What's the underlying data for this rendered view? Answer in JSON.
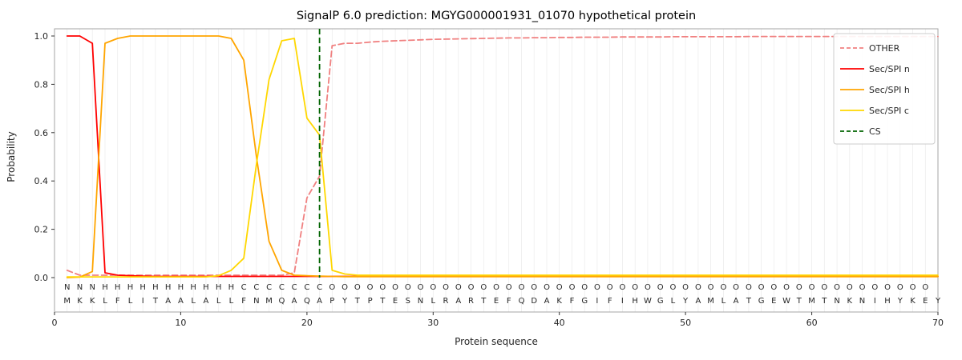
{
  "chart_data": {
    "type": "line",
    "title": "SignalP 6.0 prediction: MGYG000001931_01070 hypothetical protein",
    "xlabel": "Protein sequence",
    "ylabel": "Probability",
    "xlim": [
      0,
      70
    ],
    "ylim": [
      0,
      1.0
    ],
    "x_ticks": [
      0,
      10,
      20,
      30,
      40,
      50,
      60,
      70
    ],
    "y_ticks": [
      0.0,
      0.2,
      0.4,
      0.6,
      0.8,
      1.0
    ],
    "grid": "vertical-per-residue",
    "legend_position": "upper right",
    "sequence": "MKKLFLITAALALLFNMQAQAPYTPTESNLRARTEFQDAKFGIFIHWGLYAMLATGEWTMTNKNIHYKEY",
    "regions": "NNNHHHHHHHHHHHCCCCCCCOOOOOOOOOOOOOOOOOOOOOOOOOOOOOOOOOOOOOOOOOOOOOOOO",
    "region_colors": {
      "N": "#ff0000",
      "H": "#ffa500",
      "C": "#ffd700",
      "O": "#999999"
    },
    "sequence_color": "#1a1a1a",
    "cs_position": 21,
    "series": [
      {
        "name": "OTHER",
        "color": "#f08080",
        "dash": "7 4",
        "values": [
          0.03,
          0.01,
          0.01,
          0.01,
          0.01,
          0.01,
          0.01,
          0.01,
          0.01,
          0.01,
          0.01,
          0.01,
          0.01,
          0.01,
          0.01,
          0.01,
          0.01,
          0.01,
          0.02,
          0.33,
          0.42,
          0.96,
          0.97,
          0.97,
          0.975,
          0.978,
          0.98,
          0.982,
          0.984,
          0.986,
          0.987,
          0.988,
          0.989,
          0.99,
          0.991,
          0.992,
          0.992,
          0.993,
          0.993,
          0.994,
          0.994,
          0.995,
          0.995,
          0.995,
          0.996,
          0.996,
          0.996,
          0.996,
          0.997,
          0.997,
          0.997,
          0.997,
          0.997,
          0.997,
          0.998,
          0.998,
          0.998,
          0.998,
          0.998,
          0.998,
          0.998,
          0.998,
          0.998,
          0.998,
          0.998,
          0.998,
          0.998,
          0.998,
          0.998,
          0.998
        ]
      },
      {
        "name": "Sec/SPI n",
        "color": "#ff0000",
        "dash": null,
        "values": [
          1.0,
          1.0,
          0.97,
          0.02,
          0.01,
          0.008,
          0.006,
          0.005,
          0.005,
          0.005,
          0.005,
          0.005,
          0.005,
          0.005,
          0.005,
          0.005,
          0.005,
          0.005,
          0.005,
          0.005,
          0.005,
          0.005,
          0.005,
          0.005,
          0.005,
          0.005,
          0.005,
          0.005,
          0.005,
          0.005,
          0.005,
          0.005,
          0.005,
          0.005,
          0.005,
          0.005,
          0.005,
          0.005,
          0.005,
          0.005,
          0.005,
          0.005,
          0.005,
          0.005,
          0.005,
          0.005,
          0.005,
          0.005,
          0.005,
          0.005,
          0.005,
          0.005,
          0.005,
          0.005,
          0.005,
          0.005,
          0.005,
          0.005,
          0.005,
          0.005,
          0.005,
          0.005,
          0.005,
          0.005,
          0.005,
          0.005,
          0.005,
          0.005,
          0.005,
          0.005
        ]
      },
      {
        "name": "Sec/SPI h",
        "color": "#ffa500",
        "dash": null,
        "values": [
          0.0,
          0.002,
          0.025,
          0.97,
          0.99,
          1.0,
          1.0,
          1.0,
          1.0,
          1.0,
          1.0,
          1.0,
          1.0,
          0.99,
          0.9,
          0.5,
          0.15,
          0.03,
          0.01,
          0.008,
          0.006,
          0.005,
          0.004,
          0.004,
          0.004,
          0.004,
          0.004,
          0.004,
          0.004,
          0.004,
          0.004,
          0.004,
          0.004,
          0.004,
          0.004,
          0.004,
          0.004,
          0.004,
          0.004,
          0.004,
          0.004,
          0.004,
          0.004,
          0.004,
          0.004,
          0.004,
          0.004,
          0.004,
          0.004,
          0.004,
          0.004,
          0.004,
          0.004,
          0.004,
          0.004,
          0.004,
          0.004,
          0.004,
          0.004,
          0.004,
          0.004,
          0.004,
          0.004,
          0.004,
          0.004,
          0.004,
          0.004,
          0.004,
          0.004,
          0.004
        ]
      },
      {
        "name": "Sec/SPI c",
        "color": "#ffd700",
        "dash": null,
        "values": [
          0.003,
          0.003,
          0.003,
          0.003,
          0.003,
          0.003,
          0.003,
          0.003,
          0.003,
          0.003,
          0.003,
          0.003,
          0.008,
          0.03,
          0.08,
          0.47,
          0.82,
          0.98,
          0.99,
          0.66,
          0.59,
          0.03,
          0.015,
          0.01,
          0.01,
          0.01,
          0.01,
          0.01,
          0.01,
          0.01,
          0.01,
          0.01,
          0.01,
          0.01,
          0.01,
          0.01,
          0.01,
          0.01,
          0.01,
          0.01,
          0.01,
          0.01,
          0.01,
          0.01,
          0.01,
          0.01,
          0.01,
          0.01,
          0.01,
          0.01,
          0.01,
          0.01,
          0.01,
          0.01,
          0.01,
          0.01,
          0.01,
          0.01,
          0.01,
          0.01,
          0.01,
          0.01,
          0.01,
          0.01,
          0.01,
          0.01,
          0.01,
          0.01,
          0.01,
          0.01
        ]
      },
      {
        "name": "CS",
        "color": "#006400",
        "dash": "7 4",
        "type": "vline",
        "x": 21
      }
    ],
    "legend": [
      "OTHER",
      "Sec/SPI n",
      "Sec/SPI h",
      "Sec/SPI c",
      "CS"
    ]
  }
}
